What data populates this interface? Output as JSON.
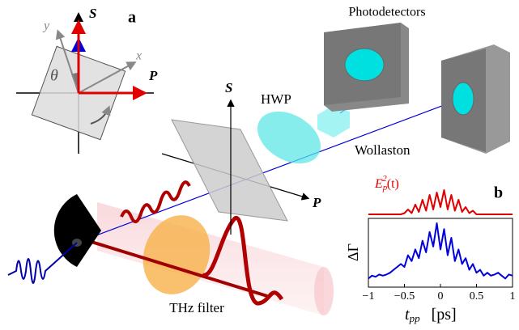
{
  "panel_a": {
    "label": "a",
    "S": "S",
    "P": "P",
    "x": "x",
    "y": "y",
    "theta": "θ"
  },
  "setup": {
    "S": "S",
    "P": "P",
    "hwp": "HWP",
    "wollaston": "Wollaston",
    "photodetectors": "Photodetectors",
    "thz_filter": "THz filter"
  },
  "chart_data": {
    "type": "line",
    "label": "b",
    "red_label": {
      "base": "E",
      "sub": "p",
      "sup": "2",
      "arg": "(t)"
    },
    "ylabel": "ΔΓ",
    "xlabel": {
      "base": "t",
      "sub": "pp",
      "unit": "[ps]"
    },
    "xlim": [
      -1,
      1
    ],
    "xticks": [
      {
        "value": -1,
        "label": "−1"
      },
      {
        "value": -0.5,
        "label": "−0.5"
      },
      0,
      0.5,
      1
    ],
    "x": [
      -1,
      -0.95,
      -0.9,
      -0.85,
      -0.8,
      -0.75,
      -0.7,
      -0.65,
      -0.6,
      -0.55,
      -0.5,
      -0.45,
      -0.4,
      -0.35,
      -0.3,
      -0.25,
      -0.2,
      -0.15,
      -0.1,
      -0.05,
      0,
      0.05,
      0.1,
      0.15,
      0.2,
      0.25,
      0.3,
      0.35,
      0.4,
      0.45,
      0.5,
      0.55,
      0.6,
      0.65,
      0.7,
      0.75,
      0.8,
      0.85,
      0.9,
      0.95,
      1
    ],
    "series": [
      {
        "color": "#e00000",
        "values": [
          0,
          0,
          0,
          0,
          0,
          0,
          0,
          0,
          0,
          0,
          0.05,
          0.2,
          0.05,
          0.4,
          0.1,
          0.6,
          0.15,
          0.8,
          0.2,
          0.9,
          0.3,
          1.0,
          0.2,
          0.8,
          0.15,
          0.6,
          0.1,
          0.3,
          0.05,
          0.15,
          0,
          0,
          0,
          0,
          0,
          0,
          0,
          0,
          0,
          0,
          0
        ]
      },
      {
        "color": "#0000dd",
        "values": [
          0.05,
          0.1,
          0.08,
          0.12,
          0.1,
          0.12,
          0.15,
          0.2,
          0.25,
          0.3,
          0.25,
          0.45,
          0.35,
          0.55,
          0.4,
          0.7,
          0.5,
          0.85,
          0.6,
          1.0,
          0.55,
          0.9,
          0.45,
          0.75,
          0.35,
          0.55,
          0.3,
          0.4,
          0.2,
          0.3,
          0.15,
          0.2,
          0.1,
          0.15,
          0.1,
          0.12,
          0.15,
          0.1,
          0.05,
          0.12,
          0.1
        ]
      }
    ]
  }
}
